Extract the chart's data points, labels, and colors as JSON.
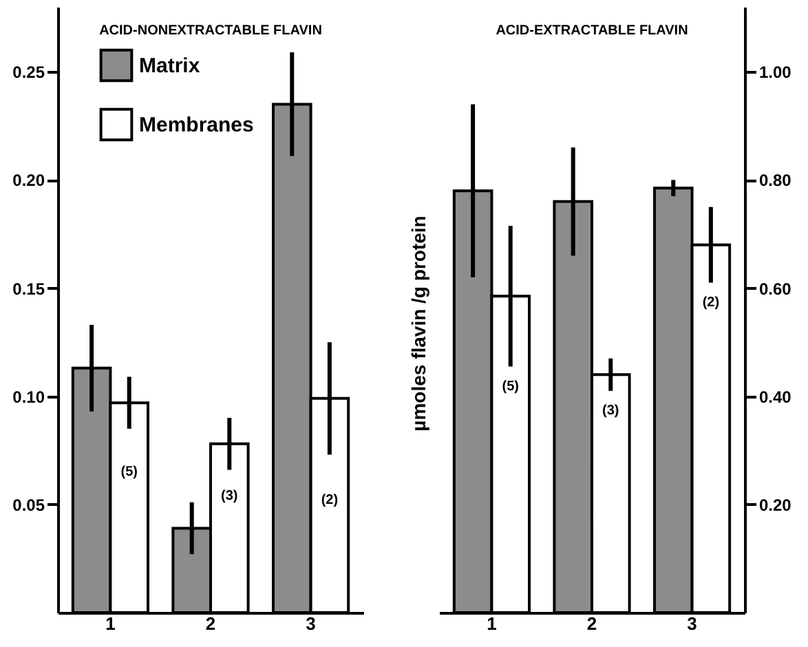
{
  "chart_data": [
    {
      "type": "bar",
      "title": "ACID-NONEXTRACTABLE FLAVIN",
      "categories": [
        "1",
        "2",
        "3"
      ],
      "series": [
        {
          "name": "Matrix",
          "color": "#8c8c8c",
          "values": [
            0.113,
            0.039,
            0.235
          ],
          "errors": [
            0.02,
            0.012,
            0.024
          ]
        },
        {
          "name": "Membranes",
          "color": "#ffffff",
          "values": [
            0.097,
            0.078,
            0.099
          ],
          "errors": [
            0.012,
            0.012,
            0.026
          ]
        }
      ],
      "ylim": [
        0,
        0.28
      ],
      "yticks": [
        0.05,
        {
          "value": 0.1,
          "label": "0.10"
        },
        0.15,
        {
          "value": 0.2,
          "label": "0.20"
        },
        0.25
      ],
      "annotations": [
        {
          "text": "(5)",
          "x": "1",
          "y": 0.074
        },
        {
          "text": "(3)",
          "x": "2",
          "y": 0.063
        },
        {
          "text": "(2)",
          "x": "3",
          "y": 0.061
        }
      ],
      "legend": "top left",
      "grid": false
    },
    {
      "type": "bar",
      "title": "ACID-EXTRACTABLE FLAVIN",
      "ylabel": "µmoles flavin /g protein",
      "categories": [
        "1",
        "2",
        "3"
      ],
      "series": [
        {
          "color": "#8c8c8c",
          "axis": "y2",
          "values": [
            0.78,
            0.76,
            0.785
          ],
          "errors": [
            0.16,
            0.1,
            0.015
          ]
        },
        {
          "color": "#ffffff",
          "axis": "y2",
          "values": [
            0.585,
            0.44,
            0.68
          ],
          "errors": [
            0.13,
            0.03,
            0.07
          ]
        }
      ],
      "y2lim": [
        0,
        1.12
      ],
      "y2ticks": [
        {
          "value": 0.2,
          "label": "0.20"
        },
        {
          "value": 0.4,
          "label": "0.40"
        },
        {
          "value": 0.6,
          "label": "0.60"
        },
        {
          "value": 0.8,
          "label": "0.80"
        },
        {
          "value": 1.0,
          "label": "1.00"
        }
      ],
      "annotations": [
        "(5)",
        "(3)",
        "(2)"
      ],
      "legend": false,
      "grid": false
    }
  ]
}
